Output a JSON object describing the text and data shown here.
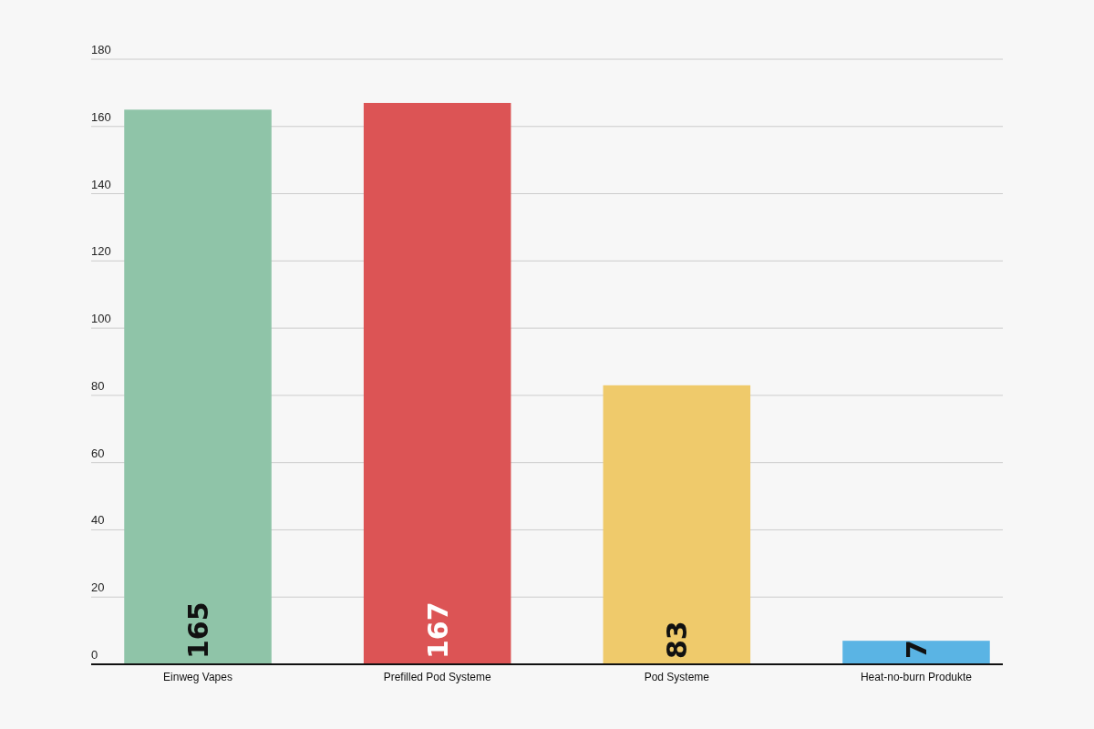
{
  "chart_data": {
    "type": "bar",
    "categories": [
      "Einweg Vapes",
      "Prefilled Pod Systeme",
      "Pod Systeme",
      "Heat-no-burn Produkte"
    ],
    "values": [
      165,
      167,
      83,
      7
    ],
    "colors": [
      "#8fc4a8",
      "#dc5455",
      "#efca6b",
      "#5ab4e4"
    ],
    "ylim": [
      0,
      180
    ],
    "yticks": [
      0,
      20,
      40,
      60,
      80,
      100,
      120,
      140,
      160,
      180
    ],
    "grid": "y",
    "data_labels": true
  }
}
